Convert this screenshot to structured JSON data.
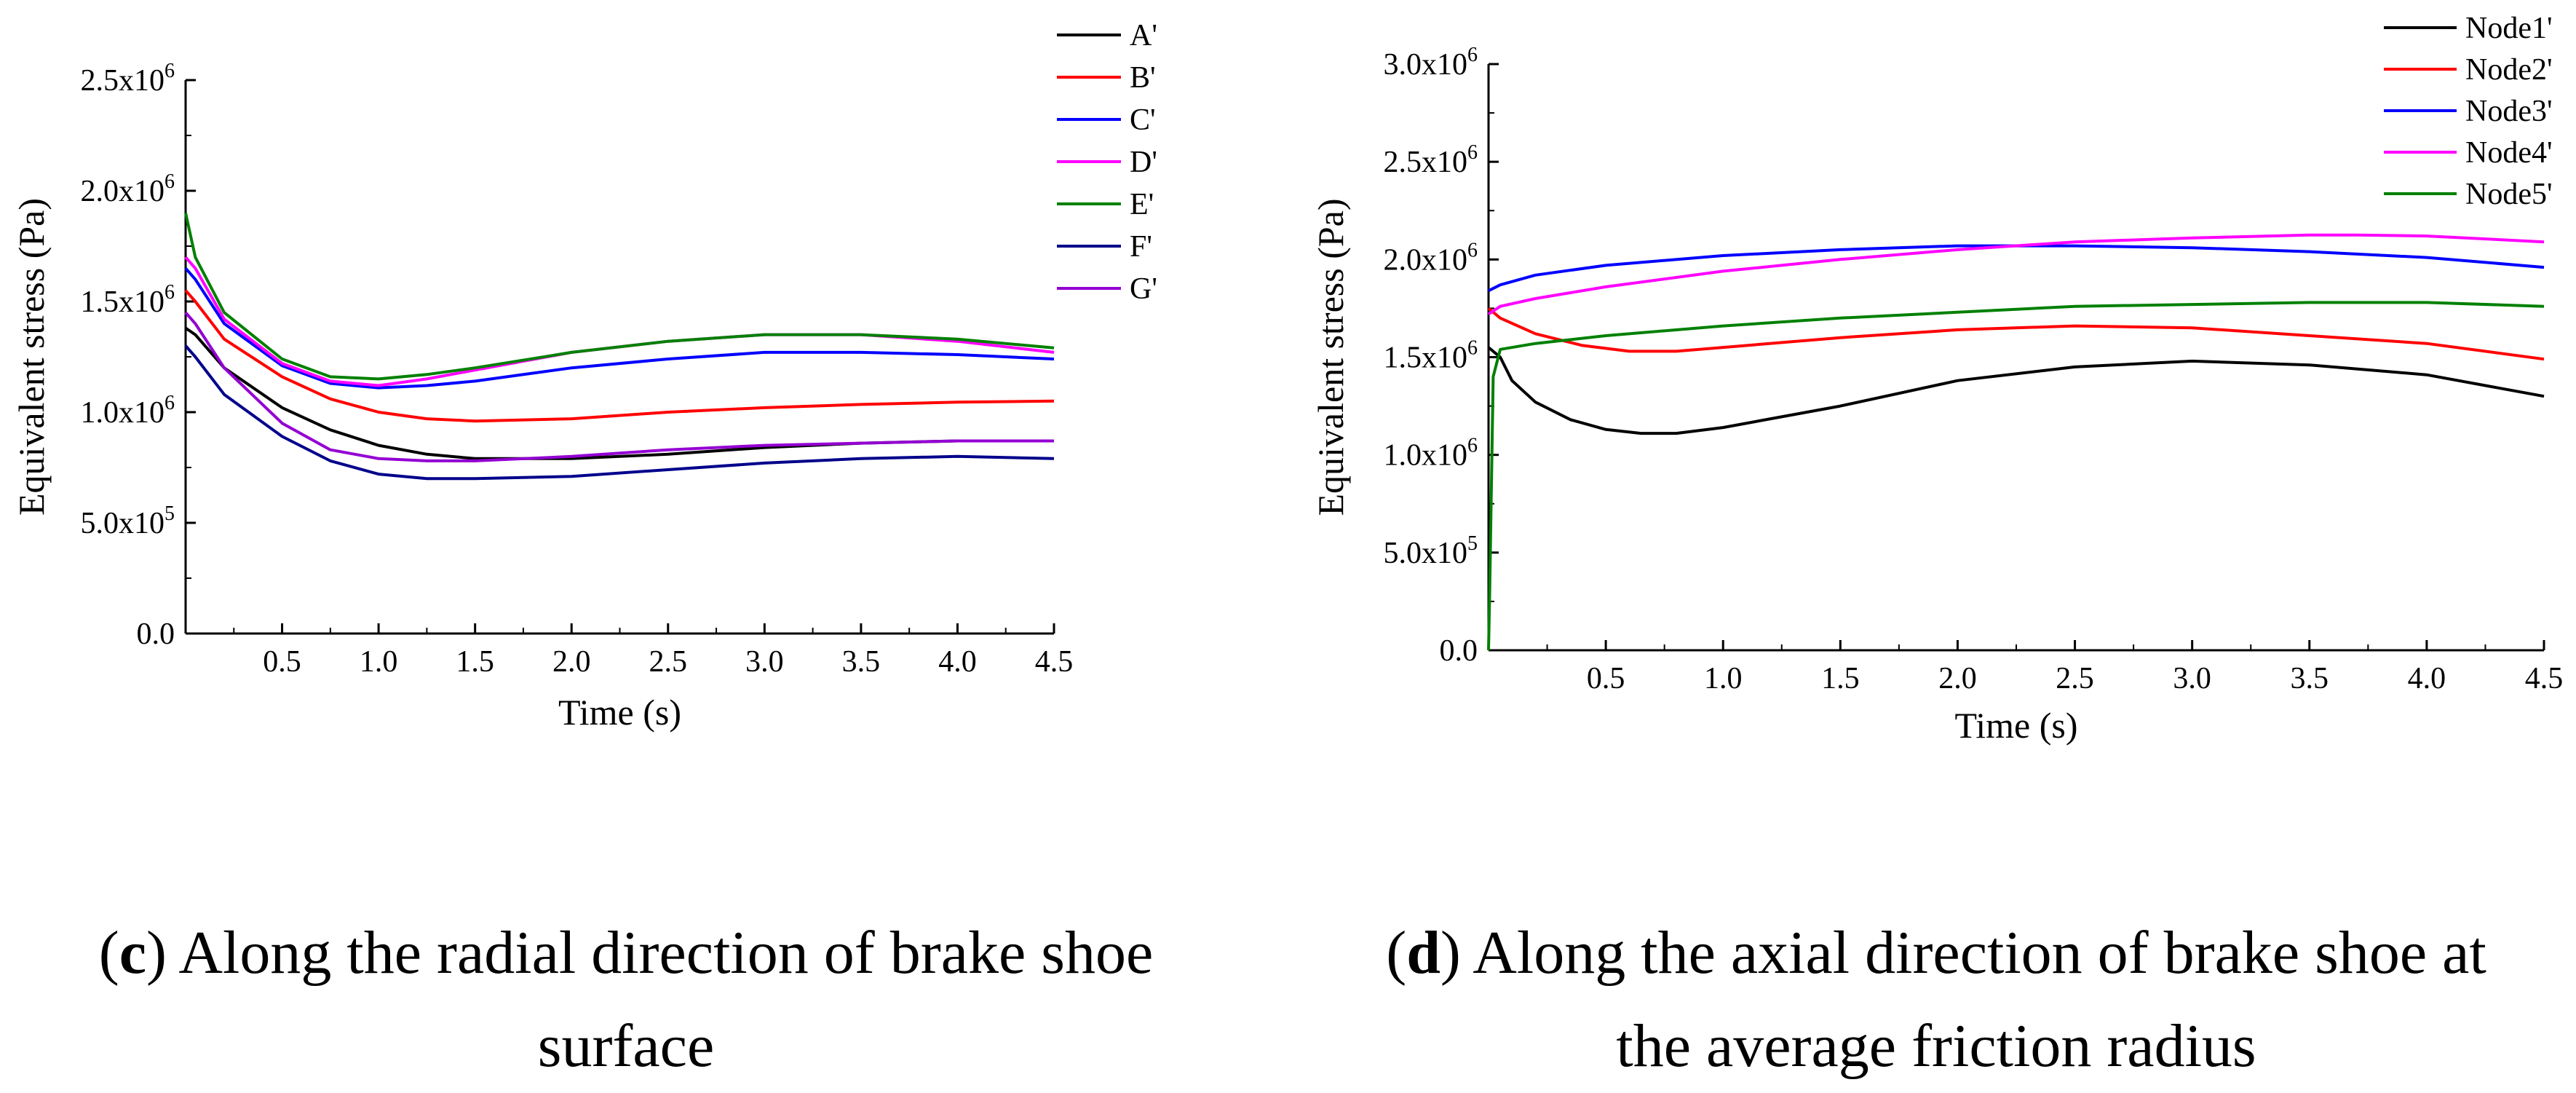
{
  "chart_data": [
    {
      "id": "c",
      "type": "line",
      "title": "",
      "xlabel": "Time (s)",
      "ylabel": "Equivalent stress  (Pa)",
      "xlim": [
        0,
        4.5
      ],
      "ylim": [
        0,
        2500000
      ],
      "xticks": [
        0.5,
        1.0,
        1.5,
        2.0,
        2.5,
        3.0,
        3.5,
        4.0,
        4.5
      ],
      "xtick_labels": [
        "0.5",
        "1.0",
        "1.5",
        "2.0",
        "2.5",
        "3.0",
        "3.5",
        "4.0",
        "4.5"
      ],
      "yticks": [
        0,
        500000,
        1000000,
        1500000,
        2000000,
        2500000
      ],
      "ytick_labels": [
        {
          "mant": "0.0",
          "exp": ""
        },
        {
          "mant": "5.0x10",
          "exp": "5"
        },
        {
          "mant": "1.0x10",
          "exp": "6"
        },
        {
          "mant": "1.5x10",
          "exp": "6"
        },
        {
          "mant": "2.0x10",
          "exp": "6"
        },
        {
          "mant": "2.5x10",
          "exp": "6"
        }
      ],
      "legend_position": "top-right",
      "series": [
        {
          "name": "A'",
          "color": "#000000",
          "x": [
            0.0,
            0.05,
            0.2,
            0.5,
            0.75,
            1.0,
            1.25,
            1.5,
            2.0,
            2.5,
            3.0,
            3.5,
            4.0,
            4.5
          ],
          "y": [
            1380000,
            1350000,
            1200000,
            1020000,
            920000,
            850000,
            810000,
            790000,
            790000,
            810000,
            840000,
            860000,
            870000,
            870000
          ]
        },
        {
          "name": "B'",
          "color": "#ff0000",
          "x": [
            0.0,
            0.05,
            0.2,
            0.5,
            0.75,
            1.0,
            1.25,
            1.5,
            2.0,
            2.5,
            3.0,
            3.5,
            4.0,
            4.5
          ],
          "y": [
            1550000,
            1500000,
            1330000,
            1160000,
            1060000,
            1000000,
            970000,
            960000,
            970000,
            1000000,
            1020000,
            1035000,
            1045000,
            1050000
          ]
        },
        {
          "name": "C'",
          "color": "#0000ff",
          "x": [
            0.0,
            0.05,
            0.2,
            0.5,
            0.75,
            1.0,
            1.25,
            1.5,
            2.0,
            2.5,
            3.0,
            3.5,
            4.0,
            4.5
          ],
          "y": [
            1650000,
            1600000,
            1400000,
            1210000,
            1130000,
            1110000,
            1120000,
            1140000,
            1200000,
            1240000,
            1270000,
            1270000,
            1260000,
            1240000
          ]
        },
        {
          "name": "D'",
          "color": "#ff00ff",
          "x": [
            0.0,
            0.05,
            0.2,
            0.5,
            0.75,
            1.0,
            1.25,
            1.5,
            2.0,
            2.5,
            3.0,
            3.5,
            4.0,
            4.5
          ],
          "y": [
            1700000,
            1650000,
            1420000,
            1220000,
            1140000,
            1120000,
            1150000,
            1190000,
            1270000,
            1320000,
            1350000,
            1350000,
            1320000,
            1270000
          ]
        },
        {
          "name": "E'",
          "color": "#008000",
          "x": [
            0.0,
            0.05,
            0.2,
            0.5,
            0.75,
            1.0,
            1.25,
            1.5,
            2.0,
            2.5,
            3.0,
            3.5,
            4.0,
            4.5
          ],
          "y": [
            1900000,
            1700000,
            1450000,
            1240000,
            1160000,
            1150000,
            1170000,
            1200000,
            1270000,
            1320000,
            1350000,
            1350000,
            1330000,
            1290000
          ]
        },
        {
          "name": "F'",
          "color": "#00008b",
          "x": [
            0.0,
            0.05,
            0.2,
            0.5,
            0.75,
            1.0,
            1.25,
            1.5,
            2.0,
            2.5,
            3.0,
            3.5,
            4.0,
            4.5
          ],
          "y": [
            1300000,
            1250000,
            1080000,
            890000,
            780000,
            720000,
            700000,
            700000,
            710000,
            740000,
            770000,
            790000,
            800000,
            790000
          ]
        },
        {
          "name": "G'",
          "color": "#9400d3",
          "x": [
            0.0,
            0.05,
            0.2,
            0.5,
            0.75,
            1.0,
            1.25,
            1.5,
            2.0,
            2.5,
            3.0,
            3.5,
            4.0,
            4.5
          ],
          "y": [
            1450000,
            1400000,
            1200000,
            950000,
            830000,
            790000,
            780000,
            780000,
            800000,
            830000,
            850000,
            860000,
            870000,
            870000
          ]
        }
      ]
    },
    {
      "id": "d",
      "type": "line",
      "title": "",
      "xlabel": "Time  (s)",
      "ylabel": "Equivalent stress  (Pa)",
      "xlim": [
        0,
        4.5
      ],
      "ylim": [
        0,
        3000000
      ],
      "xticks": [
        0.5,
        1.0,
        1.5,
        2.0,
        2.5,
        3.0,
        3.5,
        4.0,
        4.5
      ],
      "xtick_labels": [
        "0.5",
        "1.0",
        "1.5",
        "2.0",
        "2.5",
        "3.0",
        "3.5",
        "4.0",
        "4.5"
      ],
      "yticks": [
        0,
        500000,
        1000000,
        1500000,
        2000000,
        2500000,
        3000000
      ],
      "ytick_labels": [
        {
          "mant": "0.0",
          "exp": ""
        },
        {
          "mant": "5.0x10",
          "exp": "5"
        },
        {
          "mant": "1.0x10",
          "exp": "6"
        },
        {
          "mant": "1.5x10",
          "exp": "6"
        },
        {
          "mant": "2.0x10",
          "exp": "6"
        },
        {
          "mant": "2.5x10",
          "exp": "6"
        },
        {
          "mant": "3.0x10",
          "exp": "6"
        }
      ],
      "legend_position": "top-right",
      "series": [
        {
          "name": "Node1'",
          "color": "#000000",
          "x": [
            0.0,
            0.05,
            0.1,
            0.2,
            0.35,
            0.5,
            0.65,
            0.8,
            1.0,
            1.5,
            2.0,
            2.5,
            3.0,
            3.5,
            4.0,
            4.5
          ],
          "y": [
            1550000,
            1500000,
            1380000,
            1270000,
            1180000,
            1130000,
            1110000,
            1110000,
            1140000,
            1250000,
            1380000,
            1450000,
            1480000,
            1460000,
            1410000,
            1300000
          ]
        },
        {
          "name": "Node2'",
          "color": "#ff0000",
          "x": [
            0.0,
            0.05,
            0.2,
            0.4,
            0.6,
            0.8,
            1.0,
            1.5,
            2.0,
            2.5,
            3.0,
            3.5,
            4.0,
            4.5
          ],
          "y": [
            1750000,
            1700000,
            1620000,
            1560000,
            1530000,
            1530000,
            1550000,
            1600000,
            1640000,
            1660000,
            1650000,
            1610000,
            1570000,
            1490000
          ]
        },
        {
          "name": "Node3'",
          "color": "#0000ff",
          "x": [
            0.0,
            0.05,
            0.2,
            0.5,
            1.0,
            1.5,
            2.0,
            2.5,
            3.0,
            3.5,
            4.0,
            4.5
          ],
          "y": [
            1840000,
            1870000,
            1920000,
            1970000,
            2020000,
            2050000,
            2070000,
            2070000,
            2060000,
            2040000,
            2010000,
            1960000
          ]
        },
        {
          "name": "Node4'",
          "color": "#ff00ff",
          "x": [
            0.0,
            0.05,
            0.2,
            0.5,
            1.0,
            1.5,
            2.0,
            2.5,
            3.0,
            3.5,
            3.7,
            4.0,
            4.5
          ],
          "y": [
            1720000,
            1760000,
            1800000,
            1860000,
            1940000,
            2000000,
            2050000,
            2090000,
            2110000,
            2125000,
            2125000,
            2120000,
            2090000
          ]
        },
        {
          "name": "Node5'",
          "color": "#008000",
          "x": [
            0.0,
            0.005,
            0.02,
            0.05,
            0.2,
            0.5,
            1.0,
            1.5,
            2.0,
            2.5,
            3.0,
            3.5,
            4.0,
            4.5
          ],
          "y": [
            0,
            300000,
            1400000,
            1540000,
            1570000,
            1610000,
            1660000,
            1700000,
            1730000,
            1760000,
            1770000,
            1780000,
            1780000,
            1760000
          ]
        }
      ]
    }
  ],
  "captions": {
    "c": {
      "letter": "c",
      "open": "(",
      "close": ")",
      "line1": " Along the radial direction of brake shoe",
      "line2": "surface"
    },
    "d": {
      "letter": "d",
      "open": "(",
      "close": ")",
      "line1": " Along the axial direction of brake shoe at",
      "line2": "the average friction radius"
    }
  }
}
